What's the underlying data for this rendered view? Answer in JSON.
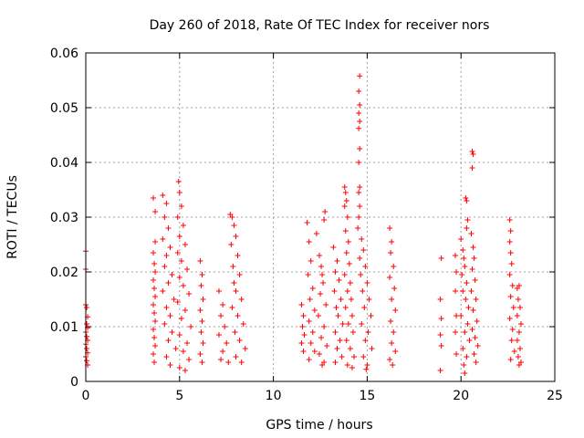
{
  "chart_data": {
    "type": "scatter",
    "title": "Day 260 of 2018, Rate Of TEC Index for receiver nors",
    "xlabel": "GPS time / hours",
    "ylabel": "ROTI / TECUs",
    "xlim": [
      0,
      25
    ],
    "ylim": [
      0,
      0.06
    ],
    "x_ticks": [
      "0",
      "5",
      "10",
      "15",
      "20",
      "25"
    ],
    "y_ticks": [
      "0",
      "0.01",
      "0.02",
      "0.03",
      "0.04",
      "0.05",
      "0.06"
    ],
    "grid": true,
    "marker": "plus",
    "color": "#ff0000",
    "series": [
      {
        "points": [
          [
            0.0,
            0.0238
          ],
          [
            0.0,
            0.0205
          ],
          [
            0.0,
            0.014
          ],
          [
            0.05,
            0.0135
          ],
          [
            0.1,
            0.0118
          ],
          [
            0.05,
            0.0105
          ],
          [
            0.1,
            0.0098
          ],
          [
            0.0,
            0.009
          ],
          [
            0.05,
            0.0082
          ],
          [
            0.1,
            0.0075
          ],
          [
            0.0,
            0.0068
          ],
          [
            0.05,
            0.006
          ],
          [
            0.1,
            0.0052
          ],
          [
            0.0,
            0.0045
          ],
          [
            0.05,
            0.0038
          ],
          [
            0.1,
            0.003
          ],
          [
            3.6,
            0.0335
          ],
          [
            3.7,
            0.031
          ],
          [
            3.7,
            0.0255
          ],
          [
            3.6,
            0.0235
          ],
          [
            3.65,
            0.0215
          ],
          [
            3.7,
            0.02
          ],
          [
            3.6,
            0.0185
          ],
          [
            3.65,
            0.017
          ],
          [
            3.7,
            0.0155
          ],
          [
            3.6,
            0.014
          ],
          [
            3.65,
            0.0125
          ],
          [
            3.7,
            0.011
          ],
          [
            3.6,
            0.0095
          ],
          [
            3.65,
            0.008
          ],
          [
            3.7,
            0.0065
          ],
          [
            3.6,
            0.005
          ],
          [
            3.65,
            0.0035
          ],
          [
            4.1,
            0.034
          ],
          [
            4.3,
            0.0325
          ],
          [
            4.2,
            0.03
          ],
          [
            4.4,
            0.028
          ],
          [
            4.1,
            0.026
          ],
          [
            4.5,
            0.0245
          ],
          [
            4.3,
            0.023
          ],
          [
            4.2,
            0.021
          ],
          [
            4.6,
            0.0195
          ],
          [
            4.4,
            0.018
          ],
          [
            4.1,
            0.0165
          ],
          [
            4.7,
            0.015
          ],
          [
            4.3,
            0.0135
          ],
          [
            4.5,
            0.012
          ],
          [
            4.2,
            0.0105
          ],
          [
            4.6,
            0.009
          ],
          [
            4.4,
            0.0075
          ],
          [
            4.8,
            0.006
          ],
          [
            4.3,
            0.0045
          ],
          [
            4.5,
            0.003
          ],
          [
            4.95,
            0.0365
          ],
          [
            5.0,
            0.0345
          ],
          [
            5.1,
            0.032
          ],
          [
            4.9,
            0.03
          ],
          [
            5.2,
            0.0285
          ],
          [
            5.0,
            0.0265
          ],
          [
            5.3,
            0.025
          ],
          [
            4.9,
            0.0235
          ],
          [
            5.1,
            0.022
          ],
          [
            5.4,
            0.0205
          ],
          [
            5.0,
            0.019
          ],
          [
            5.2,
            0.0175
          ],
          [
            5.5,
            0.016
          ],
          [
            4.9,
            0.0145
          ],
          [
            5.3,
            0.013
          ],
          [
            5.1,
            0.0115
          ],
          [
            5.6,
            0.01
          ],
          [
            5.0,
            0.0085
          ],
          [
            5.4,
            0.007
          ],
          [
            5.2,
            0.0055
          ],
          [
            5.5,
            0.004
          ],
          [
            5.0,
            0.0025
          ],
          [
            5.3,
            0.002
          ],
          [
            6.1,
            0.022
          ],
          [
            6.2,
            0.0195
          ],
          [
            6.15,
            0.0175
          ],
          [
            6.25,
            0.015
          ],
          [
            6.1,
            0.013
          ],
          [
            6.2,
            0.011
          ],
          [
            6.15,
            0.009
          ],
          [
            6.25,
            0.007
          ],
          [
            6.1,
            0.005
          ],
          [
            6.2,
            0.0035
          ],
          [
            7.1,
            0.0165
          ],
          [
            7.3,
            0.014
          ],
          [
            7.2,
            0.012
          ],
          [
            7.4,
            0.01
          ],
          [
            7.1,
            0.0085
          ],
          [
            7.5,
            0.007
          ],
          [
            7.3,
            0.0055
          ],
          [
            7.2,
            0.004
          ],
          [
            7.6,
            0.0035
          ],
          [
            7.7,
            0.0305
          ],
          [
            7.8,
            0.03
          ],
          [
            7.9,
            0.0285
          ],
          [
            8.0,
            0.0265
          ],
          [
            7.75,
            0.025
          ],
          [
            8.1,
            0.023
          ],
          [
            7.85,
            0.021
          ],
          [
            8.2,
            0.0195
          ],
          [
            7.9,
            0.018
          ],
          [
            8.0,
            0.0165
          ],
          [
            8.3,
            0.015
          ],
          [
            7.8,
            0.0135
          ],
          [
            8.1,
            0.012
          ],
          [
            8.4,
            0.0105
          ],
          [
            7.95,
            0.009
          ],
          [
            8.2,
            0.0075
          ],
          [
            8.5,
            0.006
          ],
          [
            8.0,
            0.0045
          ],
          [
            8.3,
            0.0035
          ],
          [
            11.5,
            0.014
          ],
          [
            11.6,
            0.012
          ],
          [
            11.55,
            0.01
          ],
          [
            11.65,
            0.0085
          ],
          [
            11.5,
            0.007
          ],
          [
            11.6,
            0.0055
          ],
          [
            11.8,
            0.029
          ],
          [
            11.9,
            0.0255
          ],
          [
            12.0,
            0.022
          ],
          [
            11.85,
            0.0195
          ],
          [
            12.1,
            0.017
          ],
          [
            11.95,
            0.015
          ],
          [
            12.2,
            0.013
          ],
          [
            11.9,
            0.011
          ],
          [
            12.1,
            0.009
          ],
          [
            12.0,
            0.007
          ],
          [
            12.2,
            0.0055
          ],
          [
            11.9,
            0.004
          ],
          [
            12.3,
            0.027
          ],
          [
            12.45,
            0.023
          ],
          [
            12.55,
            0.021
          ],
          [
            12.6,
            0.0195
          ],
          [
            12.75,
            0.031
          ],
          [
            12.7,
            0.0295
          ],
          [
            12.65,
            0.018
          ],
          [
            12.5,
            0.016
          ],
          [
            12.8,
            0.014
          ],
          [
            12.4,
            0.012
          ],
          [
            12.7,
            0.01
          ],
          [
            12.55,
            0.008
          ],
          [
            12.85,
            0.0065
          ],
          [
            12.45,
            0.005
          ],
          [
            12.7,
            0.0035
          ],
          [
            12.6,
            0.003
          ],
          [
            13.2,
            0.0245
          ],
          [
            13.4,
            0.022
          ],
          [
            13.3,
            0.02
          ],
          [
            13.5,
            0.0185
          ],
          [
            13.25,
            0.0165
          ],
          [
            13.6,
            0.015
          ],
          [
            13.35,
            0.0135
          ],
          [
            13.45,
            0.012
          ],
          [
            13.7,
            0.0105
          ],
          [
            13.3,
            0.009
          ],
          [
            13.55,
            0.0075
          ],
          [
            13.4,
            0.006
          ],
          [
            13.65,
            0.0045
          ],
          [
            13.3,
            0.0035
          ],
          [
            13.8,
            0.0355
          ],
          [
            13.85,
            0.0345
          ],
          [
            13.9,
            0.033
          ],
          [
            13.8,
            0.032
          ],
          [
            13.95,
            0.03
          ],
          [
            13.85,
            0.0275
          ],
          [
            14.0,
            0.0255
          ],
          [
            13.9,
            0.0235
          ],
          [
            14.05,
            0.0215
          ],
          [
            13.8,
            0.0195
          ],
          [
            14.1,
            0.018
          ],
          [
            13.95,
            0.0165
          ],
          [
            14.15,
            0.015
          ],
          [
            13.85,
            0.0135
          ],
          [
            14.2,
            0.012
          ],
          [
            14.0,
            0.0105
          ],
          [
            14.25,
            0.009
          ],
          [
            13.9,
            0.0075
          ],
          [
            14.1,
            0.006
          ],
          [
            14.3,
            0.0045
          ],
          [
            13.95,
            0.003
          ],
          [
            14.2,
            0.0025
          ],
          [
            14.6,
            0.0558
          ],
          [
            14.55,
            0.053
          ],
          [
            14.6,
            0.0505
          ],
          [
            14.55,
            0.049
          ],
          [
            14.6,
            0.0475
          ],
          [
            14.55,
            0.0462
          ],
          [
            14.6,
            0.0425
          ],
          [
            14.55,
            0.04
          ],
          [
            14.6,
            0.0355
          ],
          [
            14.55,
            0.0345
          ],
          [
            14.6,
            0.032
          ],
          [
            14.55,
            0.03
          ],
          [
            14.5,
            0.028
          ],
          [
            14.7,
            0.026
          ],
          [
            14.8,
            0.024
          ],
          [
            14.6,
            0.0225
          ],
          [
            14.9,
            0.021
          ],
          [
            14.65,
            0.0195
          ],
          [
            15.0,
            0.018
          ],
          [
            14.75,
            0.0165
          ],
          [
            15.1,
            0.015
          ],
          [
            14.85,
            0.0135
          ],
          [
            15.2,
            0.012
          ],
          [
            14.7,
            0.0105
          ],
          [
            15.05,
            0.009
          ],
          [
            14.9,
            0.0075
          ],
          [
            15.25,
            0.006
          ],
          [
            14.8,
            0.0045
          ],
          [
            15.0,
            0.003
          ],
          [
            14.95,
            0.0022
          ],
          [
            16.2,
            0.028
          ],
          [
            16.3,
            0.0255
          ],
          [
            16.25,
            0.0235
          ],
          [
            16.4,
            0.021
          ],
          [
            16.2,
            0.019
          ],
          [
            16.45,
            0.017
          ],
          [
            16.3,
            0.015
          ],
          [
            16.5,
            0.013
          ],
          [
            16.25,
            0.011
          ],
          [
            16.4,
            0.009
          ],
          [
            16.3,
            0.007
          ],
          [
            16.5,
            0.0055
          ],
          [
            16.2,
            0.004
          ],
          [
            16.35,
            0.003
          ],
          [
            18.95,
            0.0225
          ],
          [
            18.9,
            0.015
          ],
          [
            18.95,
            0.0115
          ],
          [
            18.9,
            0.0085
          ],
          [
            18.95,
            0.0065
          ],
          [
            18.9,
            0.002
          ],
          [
            19.7,
            0.023
          ],
          [
            19.75,
            0.02
          ],
          [
            19.7,
            0.0165
          ],
          [
            19.75,
            0.012
          ],
          [
            19.7,
            0.009
          ],
          [
            19.75,
            0.005
          ],
          [
            20.0,
            0.026
          ],
          [
            20.1,
            0.024
          ],
          [
            20.15,
            0.0225
          ],
          [
            20.2,
            0.021
          ],
          [
            20.05,
            0.0195
          ],
          [
            20.3,
            0.018
          ],
          [
            20.1,
            0.0165
          ],
          [
            20.25,
            0.015
          ],
          [
            20.4,
            0.0135
          ],
          [
            20.0,
            0.012
          ],
          [
            20.35,
            0.0105
          ],
          [
            20.2,
            0.009
          ],
          [
            20.45,
            0.0075
          ],
          [
            20.1,
            0.006
          ],
          [
            20.3,
            0.0045
          ],
          [
            20.15,
            0.003
          ],
          [
            20.2,
            0.0015
          ],
          [
            20.25,
            0.0335
          ],
          [
            20.3,
            0.033
          ],
          [
            20.35,
            0.0295
          ],
          [
            20.3,
            0.028
          ],
          [
            20.6,
            0.042
          ],
          [
            20.65,
            0.0415
          ],
          [
            20.6,
            0.039
          ],
          [
            20.55,
            0.027
          ],
          [
            20.65,
            0.0245
          ],
          [
            20.7,
            0.0225
          ],
          [
            20.6,
            0.0205
          ],
          [
            20.75,
            0.0185
          ],
          [
            20.55,
            0.0165
          ],
          [
            20.8,
            0.015
          ],
          [
            20.65,
            0.013
          ],
          [
            20.85,
            0.011
          ],
          [
            20.6,
            0.0095
          ],
          [
            20.75,
            0.008
          ],
          [
            20.9,
            0.0065
          ],
          [
            20.7,
            0.005
          ],
          [
            20.8,
            0.0035
          ],
          [
            22.6,
            0.0295
          ],
          [
            22.65,
            0.0275
          ],
          [
            22.6,
            0.0255
          ],
          [
            22.65,
            0.0235
          ],
          [
            22.7,
            0.0215
          ],
          [
            22.6,
            0.0195
          ],
          [
            22.75,
            0.0175
          ],
          [
            22.65,
            0.0155
          ],
          [
            22.8,
            0.0135
          ],
          [
            22.6,
            0.0115
          ],
          [
            22.75,
            0.0095
          ],
          [
            22.7,
            0.0075
          ],
          [
            22.85,
            0.0055
          ],
          [
            22.65,
            0.004
          ],
          [
            23.0,
            0.017
          ],
          [
            23.1,
            0.0175
          ],
          [
            23.05,
            0.015
          ],
          [
            23.15,
            0.0135
          ],
          [
            23.0,
            0.012
          ],
          [
            23.2,
            0.0105
          ],
          [
            23.1,
            0.009
          ],
          [
            23.0,
            0.0075
          ],
          [
            23.15,
            0.006
          ],
          [
            23.05,
            0.0045
          ],
          [
            23.2,
            0.0035
          ],
          [
            23.1,
            0.003
          ]
        ]
      }
    ]
  }
}
